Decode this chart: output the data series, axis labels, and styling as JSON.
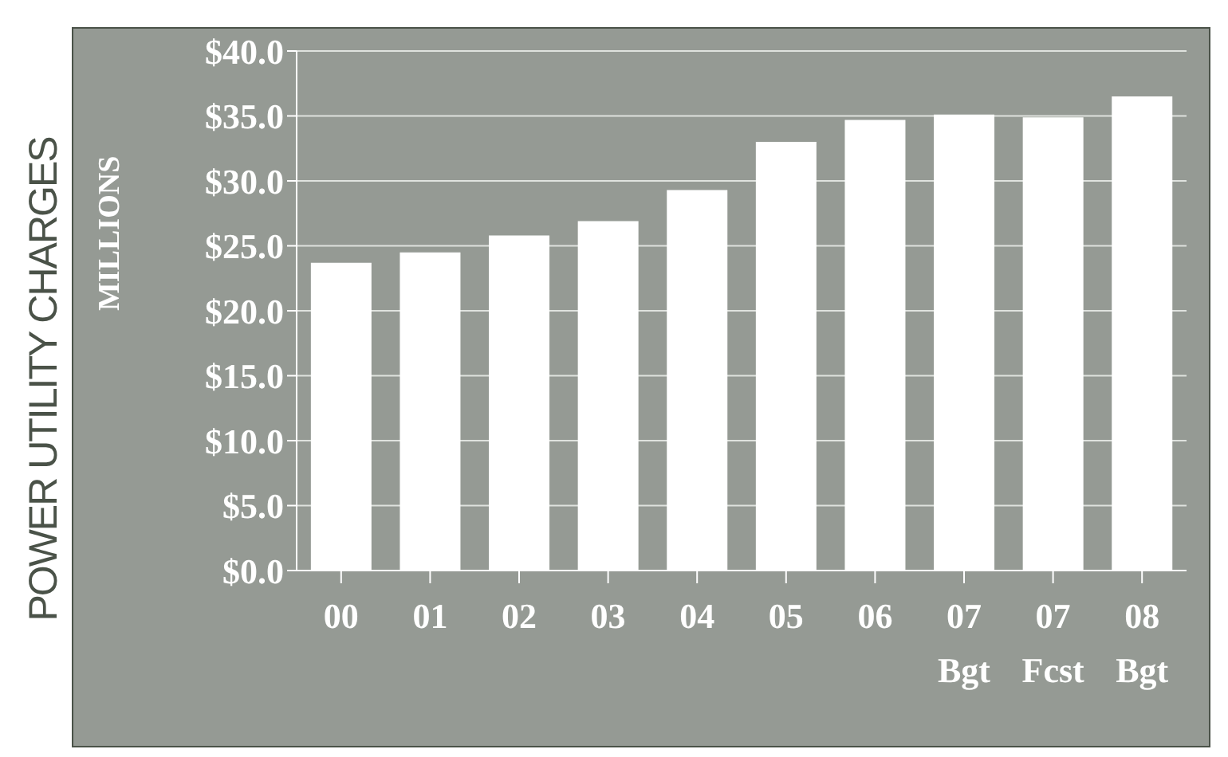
{
  "chart_data": {
    "type": "bar",
    "title": "POWER UTILITY CHARGES",
    "ylabel": "MILLIONS",
    "categories": [
      "00",
      "01",
      "02",
      "03",
      "04",
      "05",
      "06",
      "07\nBgt",
      "07\nFcst",
      "08\nBgt"
    ],
    "values": [
      23.7,
      24.5,
      25.8,
      26.9,
      29.3,
      33.0,
      34.7,
      35.1,
      34.9,
      36.5
    ],
    "color": "#ffffff",
    "ylim": [
      0,
      40
    ],
    "yticks": [
      {
        "value": 0,
        "label": "$0.0"
      },
      {
        "value": 5,
        "label": "$5.0"
      },
      {
        "value": 10,
        "label": "$10.0"
      },
      {
        "value": 15,
        "label": "$15.0"
      },
      {
        "value": 20,
        "label": "$20.0"
      },
      {
        "value": 25,
        "label": "$25.0"
      },
      {
        "value": 30,
        "label": "$30.0"
      },
      {
        "value": 35,
        "label": "$35.0"
      },
      {
        "value": 40,
        "label": "$40.0"
      }
    ],
    "grid": "y",
    "legend": false
  }
}
